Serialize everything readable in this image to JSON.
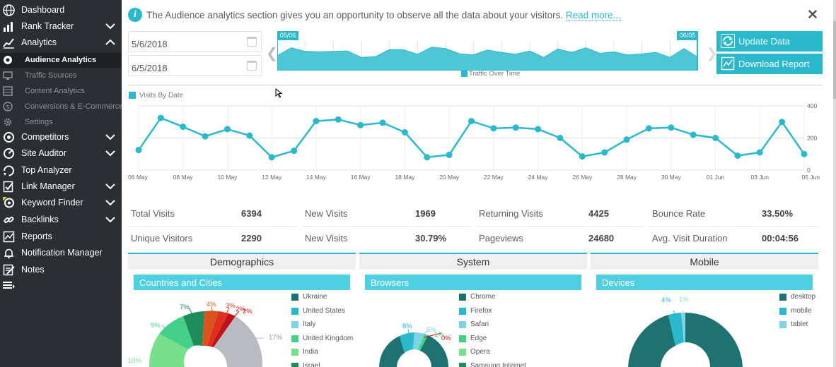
{
  "sidebar": {
    "items": [
      {
        "label": "Dashboard",
        "icon": "globe-icon",
        "chevron": false
      },
      {
        "label": "Rank Tracker",
        "icon": "bar-chart-icon",
        "chevron": "down"
      },
      {
        "label": "Analytics",
        "icon": "analytics-icon",
        "chevron": "up"
      },
      {
        "label": "Competitors",
        "icon": "competitors-icon",
        "chevron": "down"
      },
      {
        "label": "Site Auditor",
        "icon": "auditor-icon",
        "chevron": "down"
      },
      {
        "label": "Top Analyzer",
        "icon": "analyzer-icon",
        "chevron": false
      },
      {
        "label": "Link Manager",
        "icon": "link-manager-icon",
        "chevron": "down"
      },
      {
        "label": "Keyword Finder",
        "icon": "keyword-finder-icon",
        "chevron": "down"
      },
      {
        "label": "Backlinks",
        "icon": "backlinks-icon",
        "chevron": "down"
      },
      {
        "label": "Reports",
        "icon": "reports-icon",
        "chevron": false
      },
      {
        "label": "Notification Manager",
        "icon": "bell-icon",
        "chevron": false
      },
      {
        "label": "Notes",
        "icon": "notes-icon",
        "chevron": false
      }
    ],
    "subitems": [
      {
        "label": "Audience Analytics",
        "icon": "audience-icon",
        "active": true
      },
      {
        "label": "Traffic Sources",
        "icon": "traffic-icon",
        "active": false
      },
      {
        "label": "Content Analytics",
        "icon": "content-icon",
        "active": false
      },
      {
        "label": "Conversions & E-Commerce",
        "icon": "dollar-icon",
        "active": false
      },
      {
        "label": "Settings",
        "icon": "settings-gear-icon",
        "active": false
      }
    ]
  },
  "notice": {
    "text": "The Audience analytics section gives you an opportunity to observe all the data about your visitors.",
    "link": "Read more..."
  },
  "dates": {
    "start": "5/6/2018",
    "end": "6/5/2018"
  },
  "overview": {
    "start_tag": "05/06",
    "end_tag": "06/05",
    "legend": "Traffic Over Time",
    "values": [
      62,
      95,
      80,
      78,
      80,
      82,
      55,
      58,
      88,
      87,
      68,
      98,
      92,
      70,
      66,
      86,
      76,
      68,
      82,
      55,
      90,
      76,
      95,
      72,
      78,
      65,
      70,
      76,
      55,
      92,
      55
    ]
  },
  "buttons": {
    "update": "Update Data",
    "download": "Download Report"
  },
  "visits_chart": {
    "legend": "Visits By Date",
    "y_ticks": [
      "400",
      "200",
      "0"
    ],
    "x_labels": [
      "06 May",
      "08 May",
      "10 May",
      "12 May",
      "14 May",
      "16 May",
      "18 May",
      "20 May",
      "22 May",
      "24 May",
      "26 May",
      "28 May",
      "30 May",
      "01 Jun",
      "03 Jun",
      "05 Jun"
    ]
  },
  "chart_data": {
    "type": "line",
    "title": "",
    "series": [
      {
        "name": "Visits By Date",
        "values": [
          125,
          325,
          270,
          210,
          255,
          215,
          80,
          120,
          305,
          315,
          280,
          295,
          235,
          80,
          95,
          305,
          260,
          265,
          255,
          200,
          85,
          110,
          190,
          260,
          265,
          220,
          200,
          90,
          110,
          300,
          100
        ]
      }
    ],
    "x": [
      "06 May",
      "07 May",
      "08 May",
      "09 May",
      "10 May",
      "11 May",
      "12 May",
      "13 May",
      "14 May",
      "15 May",
      "16 May",
      "17 May",
      "18 May",
      "19 May",
      "20 May",
      "21 May",
      "22 May",
      "23 May",
      "24 May",
      "25 May",
      "26 May",
      "27 May",
      "28 May",
      "29 May",
      "30 May",
      "31 May",
      "01 Jun",
      "02 Jun",
      "03 Jun",
      "04 Jun",
      "05 Jun"
    ],
    "ylim": [
      0,
      400
    ],
    "grid": true,
    "legend_position": "top-left"
  },
  "stats": [
    {
      "label": "Total Visits",
      "value": "6394"
    },
    {
      "label": "New Visits",
      "value": "1969"
    },
    {
      "label": "Returning Visits",
      "value": "4425"
    },
    {
      "label": "Bounce Rate",
      "value": "33.50%"
    },
    {
      "label": "Unique Visitors",
      "value": "2290"
    },
    {
      "label": "New Visits",
      "value": "30.79%"
    },
    {
      "label": "Pageviews",
      "value": "24680"
    },
    {
      "label": "Avg. Visit Duration",
      "value": "00:04:56"
    }
  ],
  "panels": {
    "demographics": {
      "title": "Demographics",
      "sub": "Countries and Cities",
      "legend": [
        {
          "label": "Ukraine",
          "color": "#1e7272"
        },
        {
          "label": "United States",
          "color": "#2ab8cc"
        },
        {
          "label": "Italy",
          "color": "#7fd3e6"
        },
        {
          "label": "United Kingdom",
          "color": "#45d08a"
        },
        {
          "label": "India",
          "color": "#78e08a"
        },
        {
          "label": "Israel",
          "color": "#1f8a5a"
        }
      ],
      "pct": [
        "7%",
        "4%",
        "3%",
        "2%",
        "2%",
        "9%",
        "17%",
        "10%"
      ]
    },
    "system": {
      "title": "System",
      "sub": "Browsers",
      "legend": [
        {
          "label": "Chrome",
          "color": "#1e7272"
        },
        {
          "label": "Firefox",
          "color": "#2ab8cc"
        },
        {
          "label": "Safari",
          "color": "#7fd3e6"
        },
        {
          "label": "Edge",
          "color": "#45d08a"
        },
        {
          "label": "Opera",
          "color": "#78e08a"
        },
        {
          "label": "Samsung Internet",
          "color": "#1f8a5a"
        }
      ],
      "pct": [
        "8%",
        "5%",
        "1%",
        "0%"
      ]
    },
    "mobile": {
      "title": "Mobile",
      "sub": "Devices",
      "legend": [
        {
          "label": "desktop",
          "color": "#1e7272"
        },
        {
          "label": "mobile",
          "color": "#2ab8cc"
        },
        {
          "label": "tablet",
          "color": "#7fd3e6"
        }
      ],
      "pct": [
        "4%",
        "1%"
      ]
    }
  }
}
